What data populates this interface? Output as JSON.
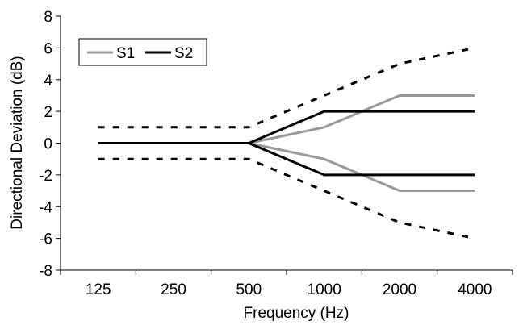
{
  "chart_data": {
    "type": "line",
    "title": "",
    "xlabel": "Frequency (Hz)",
    "ylabel": "Directional Deviation (dB)",
    "categories": [
      "125",
      "250",
      "500",
      "1000",
      "2000",
      "4000"
    ],
    "ylim": [
      -8,
      8
    ],
    "yticks": [
      -8,
      -6,
      -4,
      -2,
      0,
      2,
      4,
      6,
      8
    ],
    "grid": false,
    "legend": {
      "placement": "top-left",
      "entries": [
        "S1",
        "S2"
      ]
    },
    "series": [
      {
        "name": "S1",
        "key": "s1_upper",
        "legend": true,
        "values": [
          0,
          0,
          0,
          1,
          3,
          3
        ],
        "color": "#999999",
        "style": "solid"
      },
      {
        "name": "S1",
        "key": "s1_lower",
        "legend": false,
        "values": [
          0,
          0,
          0,
          -1,
          -3,
          -3
        ],
        "color": "#999999",
        "style": "solid"
      },
      {
        "name": "S2",
        "key": "s2_upper",
        "legend": true,
        "values": [
          0,
          0,
          0,
          2,
          2,
          2
        ],
        "color": "#000000",
        "style": "solid"
      },
      {
        "name": "S2",
        "key": "s2_lower",
        "legend": false,
        "values": [
          0,
          0,
          0,
          -2,
          -2,
          -2
        ],
        "color": "#000000",
        "style": "solid"
      },
      {
        "name": "",
        "key": "tol_upper",
        "legend": false,
        "values": [
          1,
          1,
          1,
          3,
          5,
          6
        ],
        "color": "#000000",
        "style": "dashed"
      },
      {
        "name": "",
        "key": "tol_lower",
        "legend": false,
        "values": [
          -1,
          -1,
          -1,
          -3,
          -5,
          -6
        ],
        "color": "#000000",
        "style": "dashed"
      }
    ]
  }
}
